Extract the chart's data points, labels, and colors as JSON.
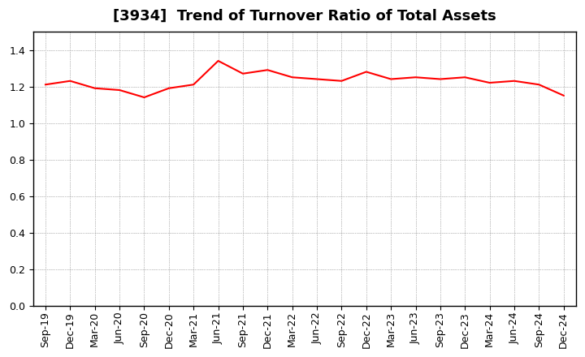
{
  "title": "[3934]  Trend of Turnover Ratio of Total Assets",
  "labels": [
    "Sep-19",
    "Dec-19",
    "Mar-20",
    "Jun-20",
    "Sep-20",
    "Dec-20",
    "Mar-21",
    "Jun-21",
    "Sep-21",
    "Dec-21",
    "Mar-22",
    "Jun-22",
    "Sep-22",
    "Dec-22",
    "Mar-23",
    "Jun-23",
    "Sep-23",
    "Dec-23",
    "Mar-24",
    "Jun-24",
    "Sep-24",
    "Dec-24"
  ],
  "values": [
    1.21,
    1.23,
    1.19,
    1.18,
    1.14,
    1.19,
    1.21,
    1.34,
    1.27,
    1.29,
    1.25,
    1.24,
    1.23,
    1.28,
    1.24,
    1.25,
    1.24,
    1.25,
    1.22,
    1.23,
    1.21,
    1.15
  ],
  "line_color": "#ff0000",
  "line_width": 1.5,
  "ylim": [
    0.0,
    1.5
  ],
  "yticks": [
    0.0,
    0.2,
    0.4,
    0.6,
    0.8,
    1.0,
    1.2,
    1.4
  ],
  "background_color": "#ffffff",
  "plot_bg_color": "#ffffff",
  "grid_color": "#aaaaaa",
  "title_fontsize": 13,
  "tick_fontsize": 9
}
